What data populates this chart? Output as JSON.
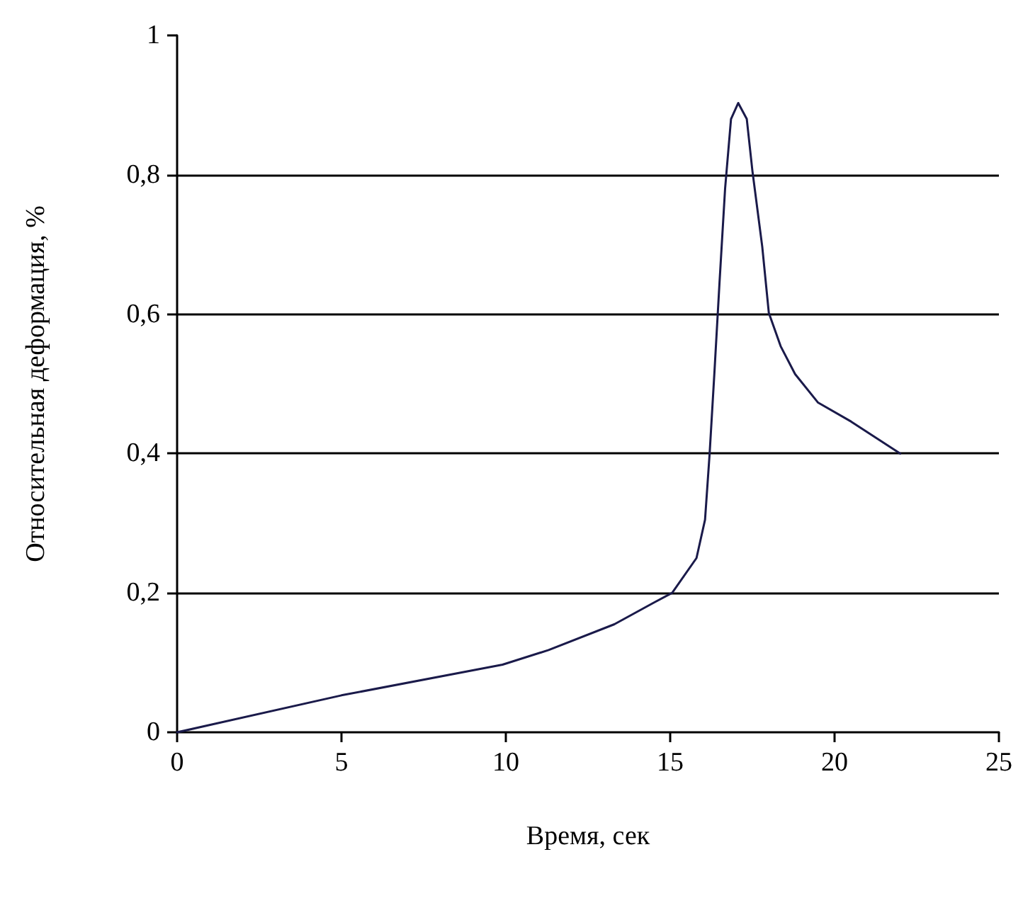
{
  "chart_data": {
    "type": "line",
    "xlabel": "Время, сек",
    "ylabel": "Относительная деформация, %",
    "series": [
      {
        "color": "#1a1a4a",
        "x": [
          0,
          5,
          9.9,
          11.3,
          13.3,
          14.5,
          15.06,
          15.8,
          16.06,
          16.2,
          16.35,
          16.5,
          16.67,
          16.85,
          17.07,
          17.33,
          17.5,
          17.8,
          18,
          18.36,
          18.8,
          19.5,
          20.5,
          22
        ],
        "values": [
          0,
          0.053,
          0.097,
          0.118,
          0.155,
          0.186,
          0.2,
          0.25,
          0.305,
          0.4,
          0.52,
          0.645,
          0.78,
          0.88,
          0.903,
          0.88,
          0.806,
          0.697,
          0.602,
          0.554,
          0.514,
          0.473,
          0.446,
          0.4
        ]
      }
    ],
    "xlim": [
      0,
      25
    ],
    "xticks": [
      0,
      5,
      10,
      15,
      20,
      25
    ],
    "ylim": [
      0,
      1
    ],
    "yticks": [
      {
        "value": 0,
        "label": "0"
      },
      {
        "value": 0.2,
        "label": "0,2"
      },
      {
        "value": 0.4,
        "label": "0,4"
      },
      {
        "value": 0.6,
        "label": "0,6"
      },
      {
        "value": 0.8,
        "label": "0,8"
      },
      {
        "value": 1,
        "label": "1"
      }
    ],
    "grid": "y",
    "marker": "none",
    "line_style": "solid"
  }
}
